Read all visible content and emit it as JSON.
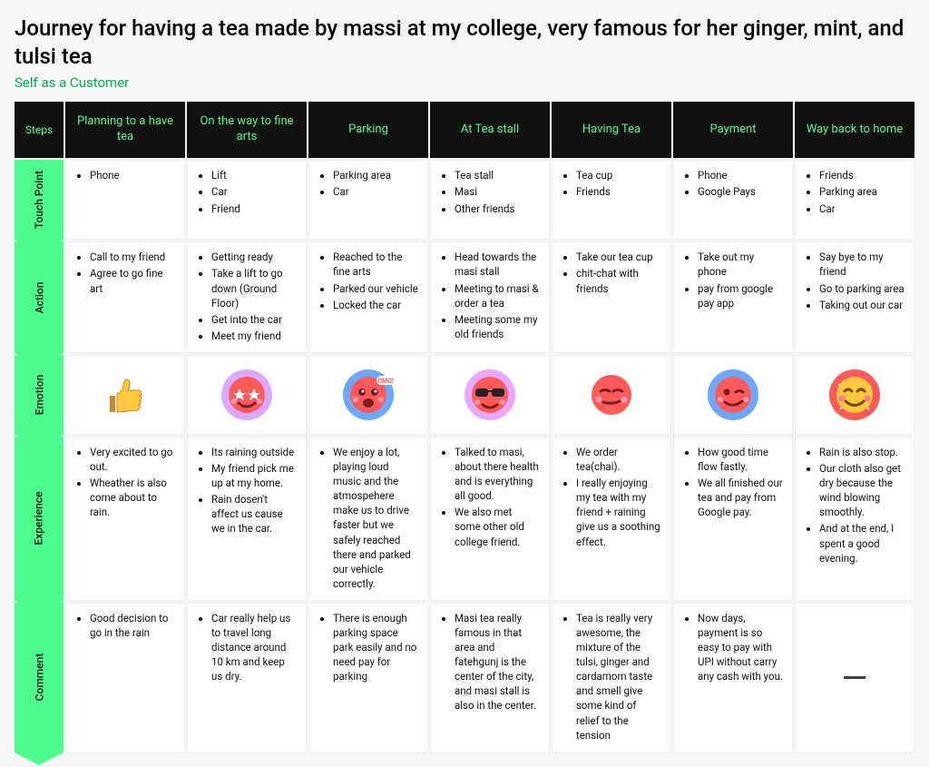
{
  "title": "Journey for having a tea made by massi at my college, very famous for her ginger, mint, and tulsi tea",
  "subtitle": "Self as a Customer",
  "colors": {
    "header_bg": "#111111",
    "accent": "#4efc8e",
    "accent_text": "#00b050",
    "cell_bg": "#ffffff",
    "page_bg": "#f5f5f5"
  },
  "steps_label": "Steps",
  "columns": [
    "Planning to a have tea",
    "On the way to fine arts",
    "Parking",
    "At Tea stall",
    "Having Tea",
    "Payment",
    "Way back to home"
  ],
  "rows": [
    {
      "label": "Touch Point",
      "cells": [
        [
          "Phone"
        ],
        [
          "Lift",
          "Car",
          "Friend"
        ],
        [
          "Parking area",
          "Car"
        ],
        [
          "Tea stall",
          "Masi",
          "Other friends"
        ],
        [
          "Tea cup",
          "Friends"
        ],
        [
          "Phone",
          "Google Pays"
        ],
        [
          "Friends",
          "Parking area",
          "Car"
        ]
      ]
    },
    {
      "label": "Action",
      "cells": [
        [
          "Call to my friend",
          "Agree to go fine art"
        ],
        [
          "Getting ready",
          "Take a lift to go down (Ground Floor)",
          "Get into the car",
          "Meet my friend"
        ],
        [
          "Reached to the fine arts",
          "Parked our vehicle",
          "Locked the car"
        ],
        [
          "Head towards the masi stall",
          "Meeting to masi & order a tea",
          "Meeting some my old friends"
        ],
        [
          "Take our tea cup",
          "chit-chat with friends"
        ],
        [
          "Take out my phone",
          "pay from google pay app"
        ],
        [
          "Say bye to my friend",
          "Go to parking area",
          "Taking out our car"
        ]
      ]
    },
    {
      "label": "Emotion",
      "emotions": [
        {
          "name": "thumbs-up",
          "disk": "#ffffff",
          "face_bg": "#ffc83d"
        },
        {
          "name": "star-eyes",
          "disk": "#d9a8ff",
          "face_bg": "#ff5a5a"
        },
        {
          "name": "omg-excited",
          "disk": "#6aa9ff",
          "face_bg": "#ff5a5a"
        },
        {
          "name": "sunglasses-cool",
          "disk": "#e9a8ff",
          "face_bg": "#ff5a5a"
        },
        {
          "name": "smug",
          "disk": "#ffffff",
          "face_bg": "#ff5a5a"
        },
        {
          "name": "winking",
          "disk": "#6aa9ff",
          "face_bg": "#ff5a5a"
        },
        {
          "name": "blush-happy",
          "disk": "#ff5a5a",
          "face_bg": "#ffc83d"
        }
      ]
    },
    {
      "label": "Experience",
      "cells": [
        [
          "Very excited to go out.",
          "Wheather is also come about to rain."
        ],
        [
          "Its raining outside",
          "My friend pick me up at my home.",
          "Rain dosen't affect us cause we in the car."
        ],
        [
          "We enjoy a lot, playing loud music and the atmospehere make us to drive faster but we safely reached there and parked our vehicle correctly."
        ],
        [
          "Talked to masi, about there health and is everything all good.",
          "We also met some other old college friend."
        ],
        [
          "We order tea(chai).",
          "I really enjoying my tea with my friend + raining give us a soothing effect."
        ],
        [
          "How good time flow fastly.",
          "We all finished our tea and pay from Google pay."
        ],
        [
          "Rain is also stop.",
          "Our cloth also get dry because the wind blowing smoothly.",
          "And at the end, I spent a good evening."
        ]
      ]
    },
    {
      "label": "Comment",
      "cells": [
        [
          "Good decision to go in the rain"
        ],
        [
          "Car really help us to travel long distance around 10 km and keep us dry."
        ],
        [
          "There is enough parking space park easily and no need pay for parking"
        ],
        [
          "Masi tea really famous in that area and fatehgunj is the center of the city, and masi stall is also in the center."
        ],
        [
          "Tea is really very awesome, the mixture of the tulsi, ginger and cardamom taste and smell give some kind of relief to the tension"
        ],
        [
          "Now days, payment is so easy to pay with UPI without carry any cash with you."
        ],
        []
      ]
    }
  ]
}
